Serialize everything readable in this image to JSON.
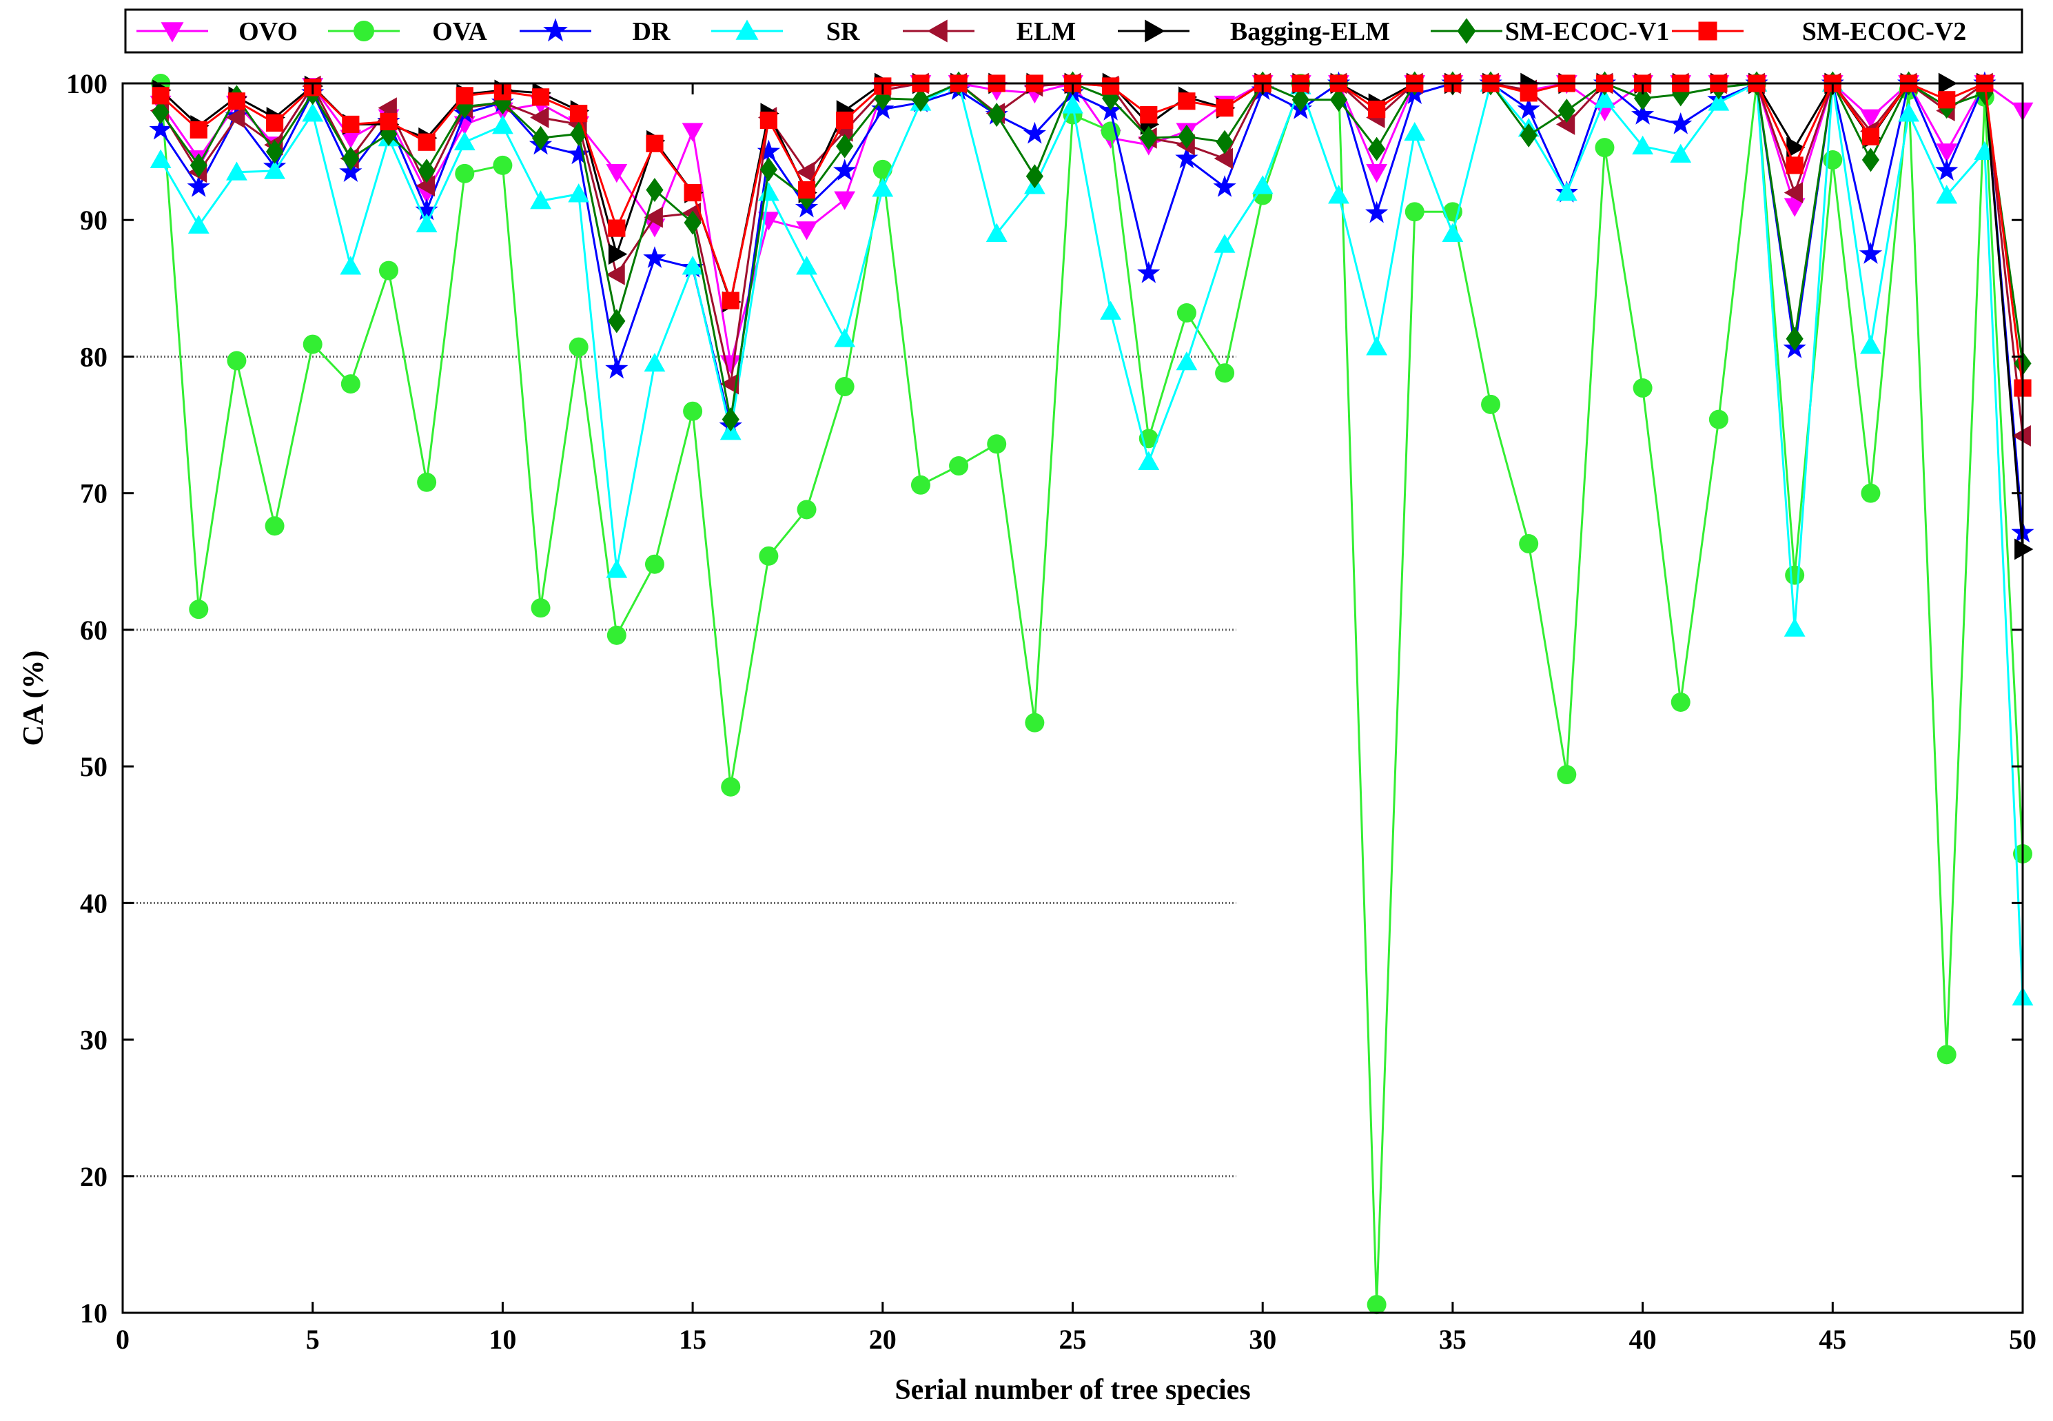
{
  "chart_data": {
    "type": "line",
    "title": "",
    "xlabel": "Serial number of tree species",
    "ylabel": "CA (%)",
    "xlim": [
      0,
      50
    ],
    "ylim": [
      10,
      100
    ],
    "xticks": [
      0,
      5,
      10,
      15,
      20,
      25,
      30,
      35,
      40,
      45,
      50
    ],
    "yticks": [
      10,
      20,
      30,
      40,
      50,
      60,
      70,
      80,
      90,
      100
    ],
    "grid": "partial horizontal dotted lines at 20, 40, 60, 80",
    "legend_position": "top",
    "x": [
      1,
      2,
      3,
      4,
      5,
      6,
      7,
      8,
      9,
      10,
      11,
      12,
      13,
      14,
      15,
      16,
      17,
      18,
      19,
      20,
      21,
      22,
      23,
      24,
      25,
      26,
      27,
      28,
      29,
      30,
      31,
      32,
      33,
      34,
      35,
      36,
      37,
      38,
      39,
      40,
      41,
      42,
      43,
      44,
      45,
      46,
      47,
      48,
      49,
      50
    ],
    "series": [
      {
        "name": "OVO",
        "color": "#ff00ff",
        "marker": "triangle-down",
        "values": [
          98.5,
          94.5,
          98.5,
          95.5,
          99.8,
          96.0,
          97.5,
          92.0,
          97.0,
          98.0,
          98.5,
          97.0,
          93.5,
          89.5,
          96.5,
          79.5,
          90.0,
          89.3,
          91.5,
          99.5,
          100,
          100,
          99.5,
          99.3,
          100,
          96.0,
          95.5,
          96.5,
          98.5,
          100,
          100,
          100,
          93.5,
          100,
          100,
          100,
          99.5,
          100,
          98.0,
          100,
          100,
          100,
          100,
          91.0,
          100,
          97.5,
          100,
          95.0,
          100,
          98.0
        ]
      },
      {
        "name": "OVA",
        "color": "#33ee33",
        "marker": "circle",
        "values": [
          100,
          61.5,
          79.7,
          67.6,
          80.9,
          78.0,
          86.3,
          70.8,
          93.4,
          94.0,
          61.6,
          80.7,
          59.6,
          64.8,
          76.0,
          48.5,
          65.4,
          68.8,
          77.8,
          93.7,
          70.6,
          72.0,
          73.6,
          53.2,
          97.7,
          96.5,
          74.0,
          83.2,
          78.8,
          91.8,
          100,
          100,
          10.6,
          90.6,
          90.6,
          76.5,
          66.3,
          49.4,
          95.3,
          77.7,
          54.7,
          75.4,
          100,
          64.0,
          94.4,
          70.0,
          99.5,
          28.9,
          99.0,
          43.6
        ]
      },
      {
        "name": "DR",
        "color": "#0000ff",
        "marker": "star",
        "values": [
          96.6,
          92.4,
          97.6,
          93.9,
          99.3,
          93.5,
          97.2,
          90.7,
          97.8,
          98.6,
          95.5,
          94.8,
          79.1,
          87.2,
          86.5,
          74.9,
          95.0,
          90.9,
          93.6,
          98.1,
          98.6,
          99.5,
          97.7,
          96.3,
          99.3,
          98.0,
          86.1,
          94.5,
          92.4,
          99.5,
          98.1,
          100,
          90.5,
          99.2,
          100,
          100,
          98.1,
          92.0,
          100,
          97.7,
          97.0,
          98.8,
          100,
          80.6,
          100,
          87.5,
          100,
          93.6,
          100,
          67.1
        ]
      },
      {
        "name": "SR",
        "color": "#00ffff",
        "marker": "triangle-up",
        "values": [
          94.4,
          89.6,
          93.5,
          93.6,
          97.8,
          86.6,
          96.0,
          89.7,
          95.7,
          96.9,
          91.4,
          91.9,
          64.4,
          79.5,
          86.6,
          74.5,
          92.0,
          86.6,
          81.3,
          92.3,
          98.6,
          100,
          89.0,
          92.5,
          98.4,
          83.3,
          72.3,
          79.6,
          88.2,
          92.5,
          99.8,
          91.8,
          80.7,
          96.4,
          89.0,
          100,
          96.7,
          92.0,
          98.8,
          95.4,
          94.8,
          98.6,
          100,
          60.1,
          100,
          80.8,
          97.8,
          91.8,
          95.0,
          33.1
        ]
      },
      {
        "name": "ELM",
        "color": "#a0102e",
        "marker": "triangle-left",
        "values": [
          98.0,
          93.5,
          97.5,
          95.5,
          99.8,
          94.5,
          98.2,
          92.5,
          98.2,
          98.6,
          97.5,
          97.0,
          86.0,
          90.2,
          90.5,
          78.0,
          97.5,
          93.5,
          96.5,
          99.5,
          100,
          100,
          97.8,
          99.8,
          100,
          99.8,
          96.0,
          95.5,
          94.5,
          100,
          100,
          100,
          97.5,
          100,
          100,
          100,
          99.5,
          97.0,
          100,
          100,
          100,
          100,
          100,
          92.0,
          100,
          96.5,
          100,
          98.0,
          100,
          74.2
        ]
      },
      {
        "name": "Bagging-ELM",
        "color": "#000000",
        "marker": "triangle-right",
        "values": [
          99.5,
          96.9,
          99.0,
          97.5,
          99.8,
          97.0,
          97.0,
          96.0,
          99.2,
          99.5,
          99.3,
          98.0,
          87.5,
          95.8,
          92.0,
          84.0,
          97.8,
          92.0,
          98.0,
          100,
          100,
          100,
          100,
          100,
          100,
          100,
          97.0,
          99.0,
          98.2,
          100,
          100,
          100,
          98.5,
          100,
          100,
          100,
          100,
          100,
          100,
          100,
          100,
          100,
          100,
          95.3,
          100,
          96.0,
          100,
          100,
          100,
          65.9
        ]
      },
      {
        "name": "SM-ECOC-V1",
        "color": "#007a00",
        "marker": "diamond",
        "values": [
          97.9,
          94.0,
          99.0,
          95.0,
          99.3,
          94.5,
          96.3,
          93.6,
          98.3,
          98.6,
          96.0,
          96.3,
          82.6,
          92.2,
          89.8,
          75.4,
          93.7,
          91.6,
          95.4,
          98.9,
          98.8,
          100,
          97.7,
          93.2,
          100,
          98.9,
          96.0,
          96.1,
          95.7,
          100,
          98.8,
          98.8,
          95.2,
          100,
          100,
          100,
          96.2,
          98.0,
          100,
          98.9,
          99.2,
          99.7,
          100,
          81.3,
          100,
          94.4,
          100,
          98.3,
          99.3,
          79.5
        ]
      },
      {
        "name": "SM-ECOC-V2",
        "color": "#ff0000",
        "marker": "square",
        "values": [
          99.1,
          96.6,
          98.7,
          97.1,
          99.7,
          97.0,
          97.2,
          95.7,
          99.1,
          99.4,
          99.0,
          97.8,
          89.4,
          95.6,
          92.0,
          84.1,
          97.3,
          92.2,
          97.3,
          99.8,
          100,
          100,
          100,
          100,
          100,
          99.8,
          97.7,
          98.7,
          98.2,
          100,
          100,
          100,
          98.1,
          100,
          100,
          100,
          99.3,
          100,
          100,
          100,
          100,
          100,
          100,
          94.0,
          100,
          96.1,
          100,
          98.8,
          100,
          77.7
        ]
      }
    ]
  }
}
